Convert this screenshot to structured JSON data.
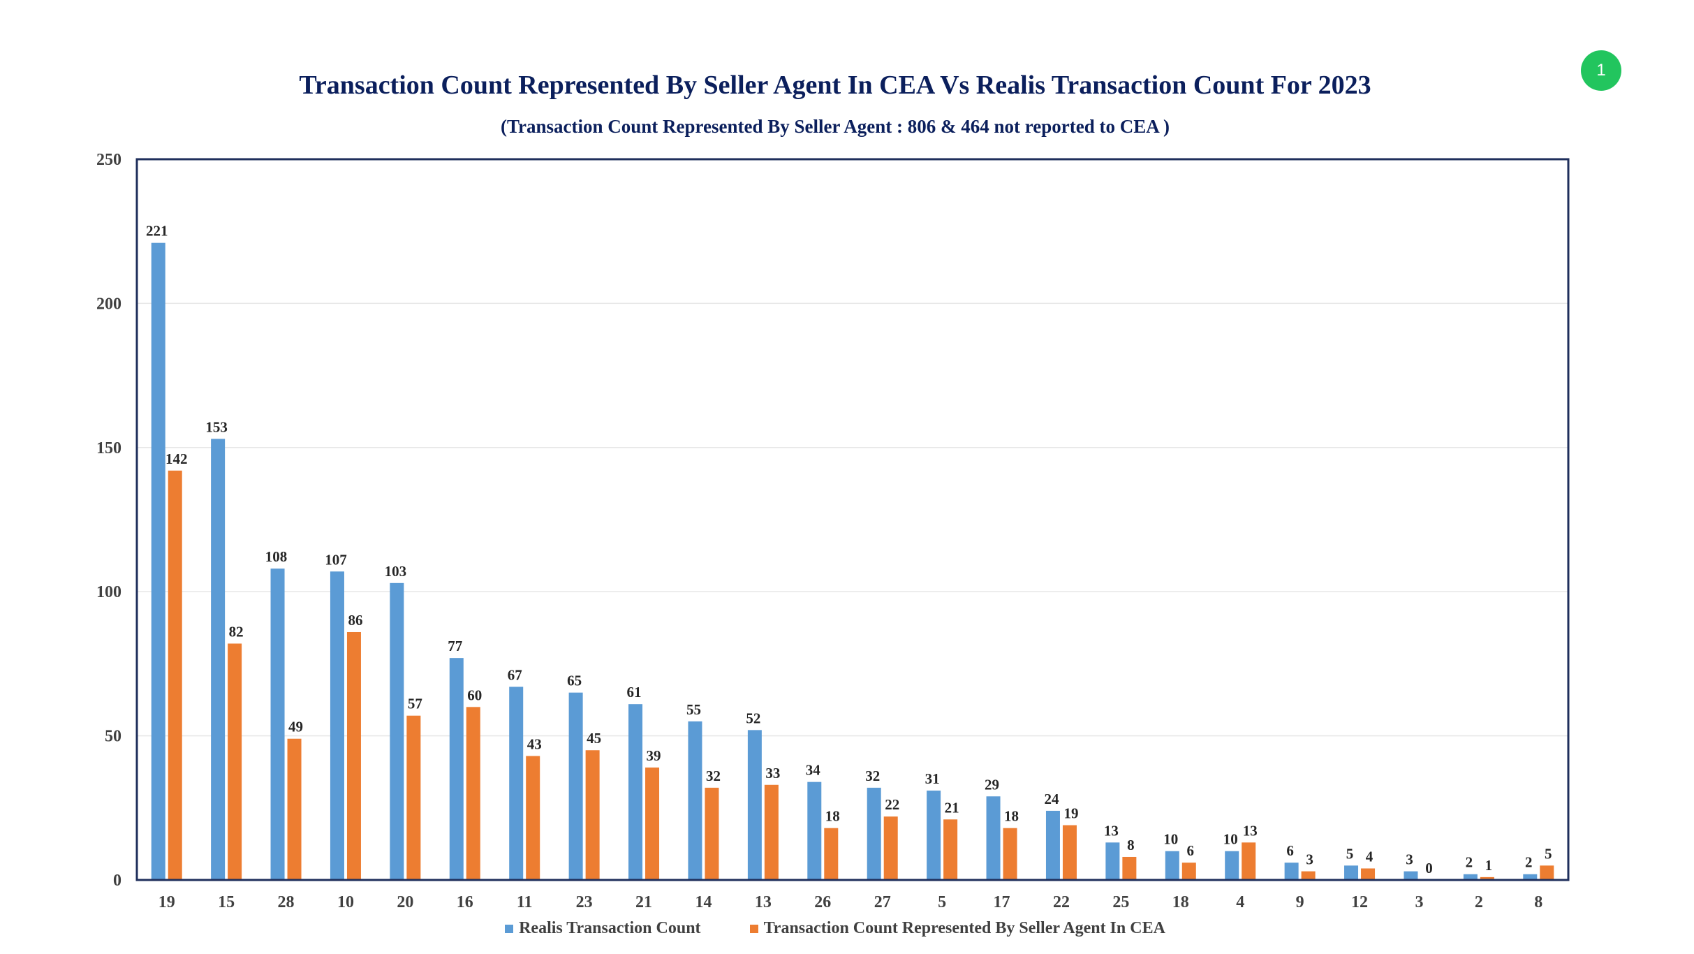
{
  "page_badge": "1",
  "colors": {
    "realis": "#5b9bd5",
    "cea": "#ed7d31",
    "title": "#0b1f5c",
    "axis_text": "#404040",
    "frame": "#1f2f5c",
    "grid": "#e6e6e6"
  },
  "chart_data": {
    "type": "bar",
    "title": "Transaction Count Represented By Seller Agent In CEA Vs Realis Transaction Count For 2023",
    "subtitle": "(Transaction Count Represented By Seller Agent : 806 & 464 not reported to CEA )",
    "xlabel": "",
    "ylabel": "",
    "ylim": [
      0,
      250
    ],
    "yticks": [
      0,
      50,
      100,
      150,
      200,
      250
    ],
    "grid": true,
    "legend_position": "bottom",
    "categories": [
      "19",
      "15",
      "28",
      "10",
      "20",
      "16",
      "11",
      "23",
      "21",
      "14",
      "13",
      "26",
      "27",
      "5",
      "17",
      "22",
      "25",
      "18",
      "4",
      "9",
      "12",
      "3",
      "2",
      "8"
    ],
    "series": [
      {
        "name": "Realis Transaction Count",
        "values": [
          221,
          153,
          108,
          107,
          103,
          77,
          67,
          65,
          61,
          55,
          52,
          34,
          32,
          31,
          29,
          24,
          13,
          10,
          10,
          6,
          5,
          3,
          2,
          2
        ]
      },
      {
        "name": "Transaction Count Represented By Seller Agent In CEA",
        "values": [
          142,
          82,
          49,
          86,
          57,
          60,
          43,
          45,
          39,
          32,
          33,
          18,
          22,
          21,
          18,
          19,
          8,
          6,
          13,
          3,
          4,
          0,
          1,
          5
        ]
      }
    ]
  }
}
